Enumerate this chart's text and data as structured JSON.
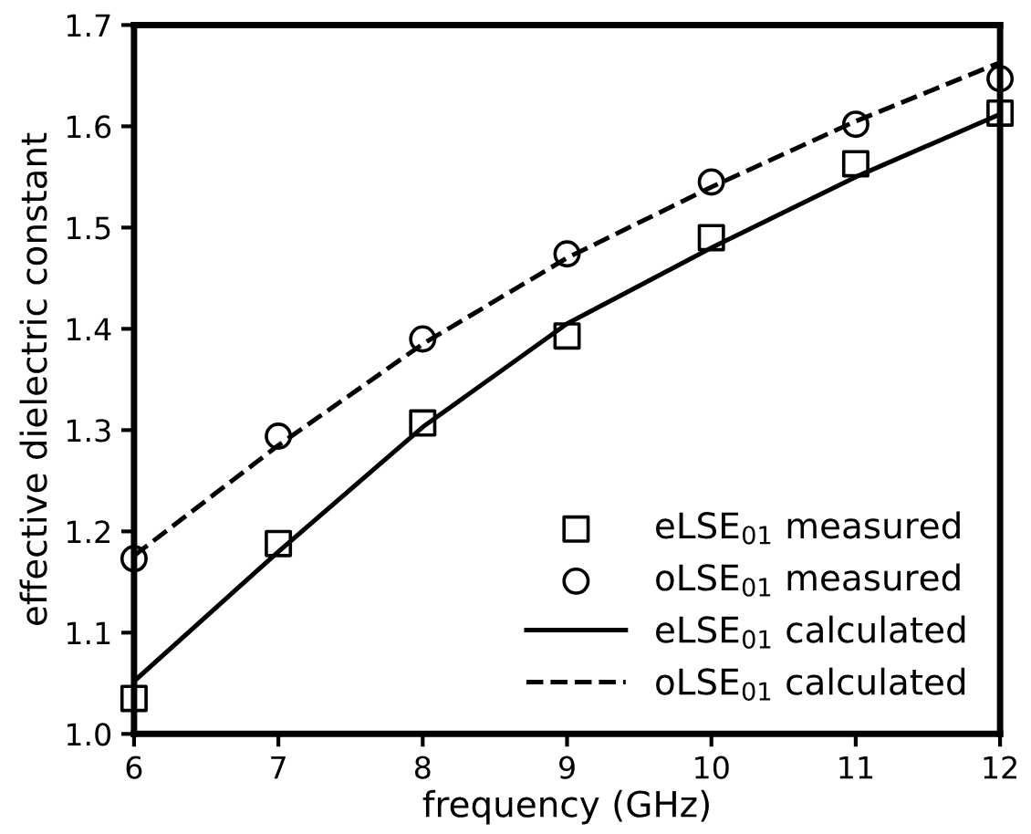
{
  "chart_data": {
    "type": "line",
    "xlabel": "frequency (GHz)",
    "ylabel": "effective dielectric constant",
    "x": [
      6,
      7,
      8,
      9,
      10,
      11,
      12
    ],
    "series": [
      {
        "name": "eLSE$_{01}$ measured",
        "type": "scatter",
        "marker": "square",
        "color": "#000000",
        "values": [
          1.035,
          1.188,
          1.307,
          1.393,
          1.49,
          1.563,
          1.613
        ]
      },
      {
        "name": "oLSE$_{01}$ measured",
        "type": "scatter",
        "marker": "circle",
        "color": "#000000",
        "values": [
          1.173,
          1.294,
          1.39,
          1.474,
          1.545,
          1.602,
          1.647
        ]
      },
      {
        "name": "eLSE$_{01}$ calculated",
        "line_style": "solid",
        "color": "#000000",
        "x": [
          6,
          7,
          8,
          9,
          10,
          11,
          12
        ],
        "values": [
          1.052,
          1.18,
          1.303,
          1.405,
          1.48,
          1.55,
          1.612
        ]
      },
      {
        "name": "oLSE$_{01}$ calculated",
        "line_style": "dashed",
        "color": "#000000",
        "x": [
          6,
          7,
          8,
          9,
          10,
          11,
          12
        ],
        "values": [
          1.176,
          1.285,
          1.385,
          1.47,
          1.54,
          1.605,
          1.663
        ]
      }
    ],
    "xlim": [
      6,
      12
    ],
    "ylim": [
      1.0,
      1.7
    ],
    "xticks": [
      6,
      7,
      8,
      9,
      10,
      11,
      12
    ],
    "yticks": [
      {
        "value": 1.0,
        "label": "1.0"
      },
      1.1,
      1.2,
      1.3,
      1.4,
      1.5,
      1.6,
      1.7
    ],
    "grid": false,
    "legend": "bottom right"
  }
}
